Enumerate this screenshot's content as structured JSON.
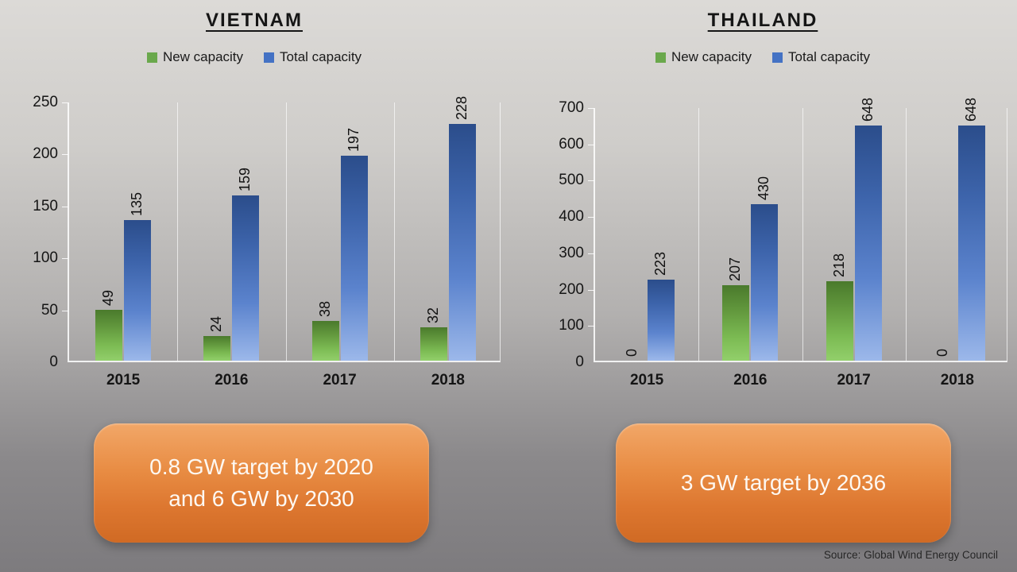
{
  "source_note": "Source: Global Wind Energy Council",
  "colors": {
    "new_capacity_green": "#6aa84c",
    "total_capacity_blue": "#4472c4",
    "callout_orange": "#df7b30",
    "background_top_gray": "#dcdad7",
    "background_bottom_gray": "#7d7b7e"
  },
  "charts": [
    {
      "title": "VIETNAM",
      "callout_lines": [
        "0.8 GW target by 2020",
        "and 6 GW by 2030"
      ],
      "chart_data": {
        "type": "bar",
        "categories": [
          "2015",
          "2016",
          "2017",
          "2018"
        ],
        "series": [
          {
            "name": "New capacity",
            "color": "#6aa84c",
            "values": [
              49,
              24,
              38,
              32
            ]
          },
          {
            "name": "Total capacity",
            "color": "#4472c4",
            "values": [
              135,
              159,
              197,
              228
            ]
          }
        ],
        "title": "VIETNAM",
        "xlabel": "",
        "ylabel": "",
        "ylim": [
          0,
          250
        ],
        "yticks": [
          0,
          50,
          100,
          150,
          200,
          250
        ],
        "grid": "vertical category separators only",
        "legend_position": "top",
        "data_labels": "values above bars, rotated 90 degrees"
      }
    },
    {
      "title": "THAILAND",
      "callout_lines": [
        "3 GW target by 2036"
      ],
      "chart_data": {
        "type": "bar",
        "categories": [
          "2015",
          "2016",
          "2017",
          "2018"
        ],
        "series": [
          {
            "name": "New capacity",
            "color": "#6aa84c",
            "values": [
              0,
              207,
              218,
              0
            ]
          },
          {
            "name": "Total capacity",
            "color": "#4472c4",
            "values": [
              223,
              430,
              648,
              648
            ]
          }
        ],
        "title": "THAILAND",
        "xlabel": "",
        "ylabel": "",
        "ylim": [
          0,
          700
        ],
        "yticks": [
          0,
          100,
          200,
          300,
          400,
          500,
          600,
          700
        ],
        "grid": "vertical category separators only",
        "legend_position": "top",
        "data_labels": "values above bars, rotated 90 degrees"
      }
    }
  ]
}
